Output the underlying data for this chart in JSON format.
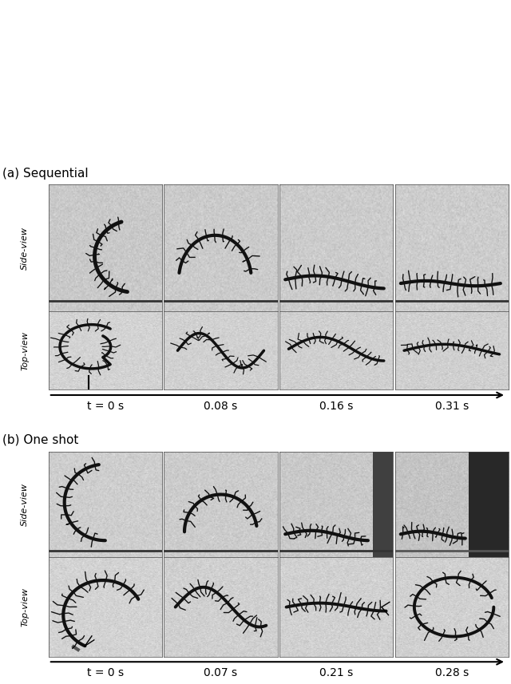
{
  "title_a": "(a) Sequential",
  "title_b": "(b) One shot",
  "times_a": [
    "t = 0 s",
    "0.08 s",
    "0.16 s",
    "0.31 s"
  ],
  "times_b": [
    "t = 0 s",
    "0.07 s",
    "0.21 s",
    "0.28 s"
  ],
  "label_side": "Side-view",
  "label_top": "Top-view",
  "bg_color": "#ffffff",
  "panel_bg_light": 205,
  "panel_bg_mid": 185,
  "panel_bg_dark3": 120,
  "panel_bg_dark4b": 60,
  "fig_width": 6.4,
  "fig_height": 8.57,
  "title_fontsize": 11,
  "label_fontsize": 8,
  "time_fontsize": 10
}
